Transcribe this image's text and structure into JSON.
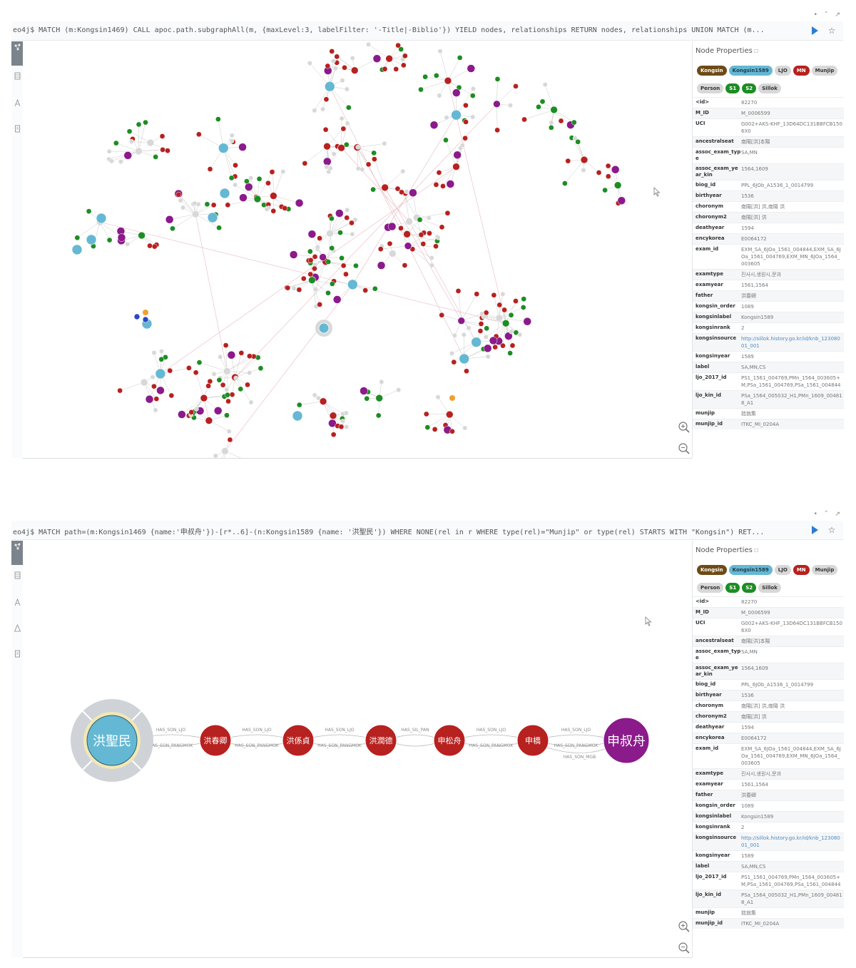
{
  "panels": [
    {
      "query": "eo4j$ MATCH (m:Kongsin1469) CALL apoc.path.subgraphAll(m, {maxLevel:3, labelFilter: '-Title|-Biblio'}) YIELD nodes, relationships RETURN nodes, relationships UNION MATCH (m...",
      "sidebar_title": "Node Properties"
    },
    {
      "query": "eo4j$ MATCH path=(m:Kongsin1469 {name:'申叔舟'})-[r*..6]-(n:Kongsin1589 {name: '洪聖民'}) WHERE NONE(rel in r WHERE type(rel)=\"Munjip\" or type(rel) STARTS WITH \"Kongsin\") RET...",
      "sidebar_title": "Node Properties"
    }
  ],
  "labels": [
    "Kongsin",
    "Kongsin1589",
    "LJO",
    "MN",
    "Munjip",
    "Person",
    "S1",
    "S2",
    "Sillok"
  ],
  "properties": [
    {
      "key": "<id>",
      "value": "82270"
    },
    {
      "key": "M_ID",
      "value": "M_0006599"
    },
    {
      "key": "UCI",
      "value": "G002+AKS-KHF_13D64DC131BBFCB1506X0"
    },
    {
      "key": "ancestralseat",
      "value": "南陽[洪]本陽"
    },
    {
      "key": "assoc_exam_type",
      "value": "SA,MN"
    },
    {
      "key": "assoc_exam_year_kin",
      "value": "1564,1609"
    },
    {
      "key": "biog_id",
      "value": "PPL_6JOb_A1536_1_0014799"
    },
    {
      "key": "birthyear",
      "value": "1536"
    },
    {
      "key": "choronym",
      "value": "南陽[洪] 洪,南陽 洪"
    },
    {
      "key": "choronym2",
      "value": "南陽[洪] 洪"
    },
    {
      "key": "deathyear",
      "value": "1594"
    },
    {
      "key": "encykorea",
      "value": "E0064172"
    },
    {
      "key": "exam_id",
      "value": "EXM_SA_6JOa_1561_004844,EXM_SA_6JOa_1561_004769,EXM_MN_6JOa_1564_003605"
    },
    {
      "key": "examtype",
      "value": "진사시,생원시,문과"
    },
    {
      "key": "examyear",
      "value": "1561,1564"
    },
    {
      "key": "father",
      "value": "洪春卿"
    },
    {
      "key": "kongsin_order",
      "value": "1089"
    },
    {
      "key": "kongsinlabel",
      "value": "Kongsin1589"
    },
    {
      "key": "kongsinrank",
      "value": "2"
    },
    {
      "key": "kongsinsource",
      "value": "http://sillok.history.go.kr/id/knb_12308001_001"
    },
    {
      "key": "kongsinyear",
      "value": "1589"
    },
    {
      "key": "label",
      "value": "SA,MN,CS"
    },
    {
      "key": "ljo_2017_id",
      "value": "PS1_1561_004769,PMn_1564_003605+M,PSa_1561_004769,PSa_1561_004844"
    },
    {
      "key": "ljo_kin_id",
      "value": "PSa_1564_005032_H1,PMn_1609_004818_A1"
    },
    {
      "key": "munjip",
      "value": "拙翁集"
    },
    {
      "key": "munjip_id",
      "value": "ITKC_MI_0204A"
    }
  ],
  "path": {
    "nodes": [
      {
        "name": "洪聖民",
        "label": "Kongsin1589"
      },
      {
        "name": "洪春卿",
        "label": "MN"
      },
      {
        "name": "洪係貞",
        "label": "MN"
      },
      {
        "name": "洪潤德",
        "label": "MN"
      },
      {
        "name": "申松舟",
        "label": "MN"
      },
      {
        "name": "申橋",
        "label": "MN"
      },
      {
        "name": "申叔舟",
        "label": "Kongsin"
      }
    ],
    "edges": [
      {
        "top": "HAS_SON_LJO",
        "bottom": "HAS_SON_PANGMOK"
      },
      {
        "top": "HAS_SON_LJO",
        "bottom": "HAS_SON_PANGMOK"
      },
      {
        "top": "HAS_SON_LJO",
        "bottom": "HAS_SON_PANGMOK"
      },
      {
        "top": "HAS_SIL_PAN",
        "bottom": ""
      },
      {
        "top": "HAS_SON_LJO",
        "bottom": "HAS_SON_PANGMOK"
      },
      {
        "top": "HAS_SON_LJO",
        "bottom": "HAS_SON_PANGMOK"
      }
    ],
    "extra_edge": "HAS_SON_MGB"
  },
  "colors": {
    "kongsin": "#6e4a16",
    "kongsin1589": "#65b8d3",
    "mn": "#b7211f",
    "s1": "#1d8d23",
    "munjip": "#8b1a8b",
    "person": "#d8d8d8",
    "ljo": "#2f45c8",
    "orange": "#f0a030"
  },
  "icons": {
    "run": "play-icon",
    "favorite": "star-icon",
    "zoom_in": "zoom-in-icon",
    "zoom_out": "zoom-out-icon"
  }
}
